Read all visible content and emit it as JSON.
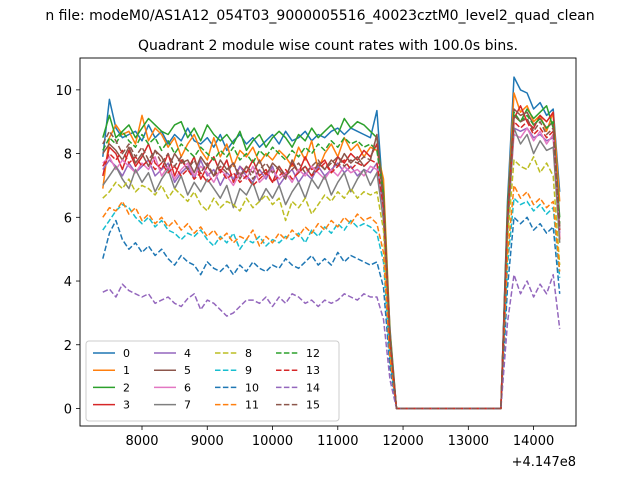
{
  "figure": {
    "suptitle": "n file: modeM0/AS1A12_054T03_9000005516_40023cztM0_level2_quad_clean",
    "offset_label": "+4.147e8"
  },
  "chart_data": {
    "type": "line",
    "title": "Quadrant 2 module wise count rates with 100.0s bins.",
    "xlabel": "",
    "ylabel": "",
    "x_offset": 414700000,
    "xlim": [
      7050,
      14650
    ],
    "ylim": [
      -0.55,
      11.0
    ],
    "x_ticks": [
      8000,
      9000,
      10000,
      11000,
      12000,
      13000,
      14000
    ],
    "y_ticks": [
      0,
      2,
      4,
      6,
      8,
      10
    ],
    "x": [
      7400,
      7500,
      7600,
      7700,
      7800,
      7900,
      8000,
      8100,
      8200,
      8300,
      8400,
      8500,
      8600,
      8700,
      8800,
      8900,
      9000,
      9100,
      9200,
      9300,
      9400,
      9500,
      9600,
      9700,
      9800,
      9900,
      10000,
      10100,
      10200,
      10300,
      10400,
      10500,
      10600,
      10700,
      10800,
      10900,
      11000,
      11100,
      11200,
      11300,
      11400,
      11500,
      11600,
      11700,
      11800,
      11900,
      13500,
      13600,
      13700,
      13800,
      13900,
      14000,
      14100,
      14200,
      14300,
      14400
    ],
    "legend": {
      "position": "lower-left",
      "columns": 4
    },
    "series": [
      {
        "name": "0",
        "color": "#1f77b4",
        "dash": false,
        "values": [
          7.9,
          9.7,
          8.8,
          8.5,
          8.6,
          8.7,
          8.4,
          8.9,
          8.5,
          8.7,
          8.3,
          8.6,
          8.4,
          8.8,
          8.4,
          8.3,
          8.5,
          8.2,
          8.6,
          8.1,
          8.4,
          8.6,
          8.3,
          8.5,
          8.2,
          8.4,
          8.6,
          8.3,
          8.7,
          8.4,
          8.5,
          8.7,
          8.4,
          8.6,
          8.5,
          8.7,
          8.8,
          8.6,
          8.8,
          8.7,
          8.6,
          8.5,
          9.35,
          6.5,
          2.5,
          0.0,
          0.0,
          6.5,
          10.4,
          10.0,
          9.9,
          9.4,
          9.6,
          9.2,
          9.4,
          6.8
        ]
      },
      {
        "name": "1",
        "color": "#ff7f0e",
        "dash": false,
        "values": [
          6.9,
          8.5,
          8.9,
          8.6,
          8.7,
          8.3,
          9.2,
          8.4,
          8.8,
          8.6,
          8.2,
          8.5,
          7.9,
          8.3,
          8.6,
          8.1,
          7.8,
          8.5,
          7.9,
          8.3,
          7.6,
          8.1,
          7.9,
          8.2,
          7.7,
          8.0,
          7.8,
          8.1,
          7.9,
          7.6,
          8.2,
          7.8,
          8.4,
          7.5,
          8.0,
          8.3,
          7.9,
          8.5,
          8.1,
          8.3,
          7.9,
          8.2,
          8.1,
          7.2,
          2.4,
          0.0,
          0.0,
          6.2,
          9.9,
          9.3,
          9.5,
          9.0,
          9.2,
          8.7,
          9.3,
          6.5
        ]
      },
      {
        "name": "2",
        "color": "#2ca02c",
        "dash": false,
        "values": [
          8.5,
          9.2,
          8.5,
          8.7,
          8.9,
          8.5,
          8.8,
          9.1,
          8.9,
          8.7,
          8.6,
          8.9,
          9.0,
          8.5,
          8.8,
          8.4,
          8.9,
          8.6,
          8.4,
          8.6,
          8.3,
          8.7,
          8.1,
          8.4,
          8.6,
          8.2,
          8.5,
          8.7,
          8.5,
          8.2,
          8.6,
          8.4,
          8.8,
          8.5,
          8.7,
          8.9,
          8.6,
          9.1,
          8.8,
          9.0,
          8.9,
          8.7,
          8.5,
          6.8,
          2.3,
          0.0,
          0.0,
          6.3,
          9.2,
          9.0,
          9.4,
          9.1,
          9.3,
          9.5,
          8.8,
          6.0
        ]
      },
      {
        "name": "3",
        "color": "#d62728",
        "dash": false,
        "values": [
          7.3,
          8.2,
          8.0,
          7.5,
          8.1,
          7.6,
          7.9,
          8.3,
          7.7,
          7.5,
          8.0,
          7.3,
          7.8,
          7.5,
          7.9,
          7.2,
          7.6,
          7.9,
          7.4,
          7.8,
          7.1,
          7.6,
          7.4,
          7.8,
          7.3,
          7.5,
          7.1,
          7.6,
          7.3,
          7.7,
          7.4,
          7.9,
          7.5,
          7.6,
          7.8,
          7.4,
          7.9,
          7.7,
          8.0,
          7.8,
          8.1,
          7.9,
          8.3,
          6.6,
          2.2,
          0.0,
          0.0,
          6.0,
          9.1,
          9.5,
          9.0,
          8.8,
          9.2,
          9.0,
          9.3,
          5.3
        ]
      },
      {
        "name": "4",
        "color": "#9467bd",
        "dash": false,
        "values": [
          7.5,
          7.8,
          7.6,
          7.3,
          7.7,
          7.4,
          7.6,
          7.8,
          7.3,
          7.5,
          7.7,
          7.1,
          7.4,
          7.6,
          7.2,
          7.8,
          7.3,
          7.5,
          7.0,
          7.4,
          7.2,
          7.6,
          7.3,
          7.1,
          7.5,
          7.2,
          7.6,
          7.0,
          7.3,
          7.5,
          7.1,
          7.4,
          7.2,
          7.6,
          7.3,
          7.5,
          7.7,
          7.4,
          7.6,
          7.3,
          7.5,
          7.4,
          7.7,
          6.2,
          2.0,
          0.0,
          0.0,
          5.8,
          8.8,
          8.7,
          8.8,
          8.5,
          8.6,
          8.4,
          8.5,
          5.5
        ]
      },
      {
        "name": "5",
        "color": "#8c564b",
        "dash": false,
        "values": [
          8.0,
          8.3,
          8.1,
          7.8,
          8.2,
          7.7,
          8.0,
          7.6,
          8.1,
          7.9,
          7.5,
          8.0,
          7.7,
          7.8,
          7.4,
          7.9,
          7.6,
          7.3,
          7.8,
          7.5,
          7.7,
          7.2,
          7.6,
          7.4,
          7.8,
          7.3,
          7.7,
          7.5,
          7.2,
          7.8,
          7.4,
          7.6,
          7.3,
          7.7,
          7.5,
          7.8,
          7.6,
          8.0,
          7.7,
          7.9,
          7.6,
          7.8,
          8.6,
          6.4,
          2.1,
          0.0,
          0.0,
          6.1,
          9.4,
          9.2,
          9.3,
          8.9,
          9.1,
          8.8,
          9.0,
          5.6
        ]
      },
      {
        "name": "6",
        "color": "#e377c2",
        "dash": false,
        "values": [
          7.7,
          7.9,
          7.5,
          7.8,
          7.6,
          7.4,
          7.7,
          7.5,
          7.9,
          7.3,
          7.6,
          7.2,
          7.5,
          7.7,
          7.3,
          7.6,
          7.4,
          7.1,
          7.5,
          7.3,
          7.0,
          7.4,
          7.2,
          7.6,
          7.1,
          7.3,
          7.5,
          7.2,
          7.4,
          7.1,
          7.5,
          7.3,
          7.6,
          7.4,
          7.2,
          7.5,
          7.3,
          7.6,
          7.4,
          7.5,
          7.3,
          7.6,
          7.5,
          6.1,
          2.0,
          0.0,
          0.0,
          5.7,
          8.6,
          8.5,
          8.8,
          8.4,
          8.7,
          8.3,
          8.6,
          5.4
        ]
      },
      {
        "name": "7",
        "color": "#7f7f7f",
        "dash": false,
        "values": [
          7.0,
          7.3,
          7.6,
          7.2,
          6.9,
          7.5,
          7.1,
          7.4,
          6.8,
          7.2,
          7.5,
          6.9,
          7.3,
          6.7,
          7.1,
          6.8,
          7.2,
          6.9,
          6.6,
          7.0,
          6.3,
          6.9,
          6.7,
          7.1,
          6.5,
          6.9,
          6.6,
          7.0,
          6.4,
          6.8,
          7.1,
          6.6,
          7.2,
          6.9,
          7.3,
          6.7,
          7.1,
          7.4,
          6.8,
          7.2,
          7.5,
          7.0,
          7.4,
          5.9,
          1.9,
          0.0,
          0.0,
          5.5,
          8.8,
          8.3,
          8.6,
          8.0,
          8.4,
          8.1,
          8.2,
          5.2
        ]
      },
      {
        "name": "8",
        "color": "#bcbd22",
        "dash": true,
        "values": [
          6.6,
          6.8,
          7.1,
          6.9,
          7.2,
          6.8,
          7.0,
          6.9,
          6.7,
          7.0,
          6.6,
          6.9,
          6.7,
          6.5,
          6.8,
          6.4,
          6.2,
          6.6,
          6.3,
          6.5,
          6.4,
          6.2,
          6.6,
          6.3,
          6.5,
          6.7,
          6.4,
          6.6,
          5.9,
          6.5,
          6.3,
          6.6,
          6.1,
          6.4,
          6.7,
          6.5,
          6.8,
          6.6,
          6.9,
          6.6,
          6.8,
          6.7,
          6.8,
          5.6,
          1.8,
          0.0,
          0.0,
          5.3,
          7.8,
          7.6,
          7.5,
          7.9,
          7.4,
          7.7,
          7.3,
          4.5
        ]
      },
      {
        "name": "9",
        "color": "#17becf",
        "dash": true,
        "values": [
          5.6,
          5.9,
          6.2,
          6.4,
          6.3,
          6.0,
          5.8,
          6.0,
          5.7,
          5.9,
          5.6,
          5.5,
          5.3,
          5.5,
          5.4,
          5.6,
          5.3,
          5.1,
          5.4,
          5.2,
          5.5,
          5.0,
          5.3,
          5.2,
          5.4,
          5.1,
          5.3,
          5.2,
          5.4,
          5.3,
          5.5,
          5.2,
          5.6,
          5.4,
          5.7,
          5.5,
          5.8,
          5.6,
          5.9,
          5.7,
          5.8,
          5.7,
          5.5,
          4.6,
          1.5,
          0.0,
          0.0,
          4.5,
          6.6,
          6.4,
          6.5,
          6.2,
          6.4,
          6.1,
          6.3,
          4.1
        ]
      },
      {
        "name": "10",
        "color": "#1f77b4",
        "dash": true,
        "values": [
          4.7,
          5.5,
          5.9,
          5.3,
          5.0,
          5.2,
          4.9,
          5.1,
          4.8,
          5.0,
          4.7,
          4.5,
          4.8,
          4.6,
          4.5,
          4.2,
          4.6,
          4.4,
          4.3,
          4.5,
          4.2,
          4.5,
          4.3,
          4.6,
          4.4,
          4.3,
          4.5,
          4.4,
          4.7,
          4.5,
          4.4,
          4.6,
          4.8,
          4.5,
          4.7,
          4.5,
          4.9,
          4.6,
          4.8,
          4.7,
          4.6,
          4.5,
          4.6,
          3.8,
          1.3,
          0.0,
          0.0,
          3.8,
          6.0,
          5.8,
          6.0,
          5.6,
          5.8,
          5.5,
          5.7,
          3.6
        ]
      },
      {
        "name": "11",
        "color": "#ff7f0e",
        "dash": true,
        "values": [
          6.0,
          6.3,
          6.2,
          6.5,
          6.1,
          6.3,
          5.9,
          6.1,
          5.8,
          6.0,
          5.7,
          5.9,
          5.6,
          5.8,
          5.5,
          5.7,
          5.4,
          5.6,
          5.3,
          5.5,
          5.2,
          5.4,
          5.3,
          5.6,
          5.1,
          5.4,
          5.2,
          5.5,
          5.3,
          5.6,
          5.4,
          5.7,
          5.5,
          5.8,
          5.6,
          5.9,
          5.7,
          6.0,
          5.8,
          6.1,
          5.9,
          6.0,
          5.8,
          4.9,
          1.6,
          0.0,
          0.0,
          4.8,
          7.0,
          6.6,
          6.8,
          6.4,
          6.6,
          6.3,
          6.5,
          4.3
        ]
      },
      {
        "name": "12",
        "color": "#2ca02c",
        "dash": true,
        "values": [
          8.1,
          8.5,
          8.3,
          8.7,
          8.4,
          8.2,
          8.6,
          8.3,
          8.5,
          8.1,
          8.4,
          8.0,
          8.3,
          8.1,
          7.9,
          8.2,
          8.0,
          7.8,
          8.1,
          7.9,
          8.2,
          7.8,
          8.0,
          7.7,
          8.1,
          7.9,
          8.2,
          8.0,
          7.8,
          8.1,
          7.9,
          8.2,
          8.0,
          8.3,
          8.1,
          8.4,
          8.2,
          8.5,
          8.3,
          8.4,
          8.2,
          8.3,
          8.1,
          6.6,
          2.2,
          0.0,
          0.0,
          6.0,
          9.3,
          9.0,
          9.2,
          8.9,
          9.1,
          8.8,
          9.0,
          5.8
        ]
      },
      {
        "name": "13",
        "color": "#d62728",
        "dash": true,
        "values": [
          7.6,
          8.0,
          7.8,
          8.1,
          7.7,
          7.9,
          7.6,
          7.8,
          7.5,
          7.7,
          7.4,
          7.6,
          7.3,
          7.5,
          7.2,
          7.4,
          7.1,
          7.3,
          7.5,
          7.2,
          7.4,
          7.1,
          7.3,
          7.0,
          7.2,
          7.4,
          7.1,
          7.3,
          7.5,
          7.2,
          7.4,
          7.6,
          7.3,
          7.5,
          7.7,
          7.4,
          7.6,
          7.8,
          7.5,
          7.7,
          7.6,
          7.8,
          7.7,
          6.3,
          2.1,
          0.0,
          0.0,
          5.9,
          9.0,
          8.8,
          9.0,
          8.6,
          8.8,
          8.5,
          8.7,
          5.6
        ]
      },
      {
        "name": "14",
        "color": "#9467bd",
        "dash": true,
        "values": [
          3.65,
          3.75,
          3.5,
          3.9,
          3.7,
          3.6,
          3.5,
          3.6,
          3.3,
          3.4,
          3.5,
          3.3,
          3.2,
          3.45,
          3.6,
          3.1,
          3.4,
          3.3,
          3.1,
          2.9,
          3.0,
          3.2,
          3.4,
          3.4,
          3.3,
          3.5,
          3.2,
          3.5,
          3.3,
          3.6,
          3.5,
          3.3,
          3.4,
          3.2,
          3.4,
          3.3,
          3.4,
          3.6,
          3.5,
          3.4,
          3.6,
          3.5,
          3.5,
          2.8,
          0.9,
          0.0,
          0.0,
          2.7,
          4.2,
          3.6,
          4.0,
          3.5,
          3.9,
          3.6,
          4.2,
          2.5
        ]
      },
      {
        "name": "15",
        "color": "#8c564b",
        "dash": true,
        "values": [
          8.3,
          8.7,
          8.4,
          8.0,
          8.3,
          7.9,
          8.2,
          7.8,
          8.1,
          7.7,
          8.0,
          7.6,
          7.9,
          7.5,
          7.8,
          7.4,
          7.7,
          7.3,
          7.6,
          7.4,
          7.7,
          7.3,
          7.6,
          7.2,
          7.5,
          7.7,
          7.4,
          7.6,
          7.3,
          7.5,
          7.7,
          7.4,
          7.6,
          7.8,
          7.5,
          7.7,
          7.9,
          7.6,
          7.8,
          7.7,
          7.9,
          7.8,
          8.6,
          6.5,
          2.2,
          0.0,
          0.0,
          6.1,
          9.2,
          9.0,
          9.1,
          8.7,
          9.0,
          8.6,
          8.8,
          5.7
        ]
      }
    ]
  }
}
